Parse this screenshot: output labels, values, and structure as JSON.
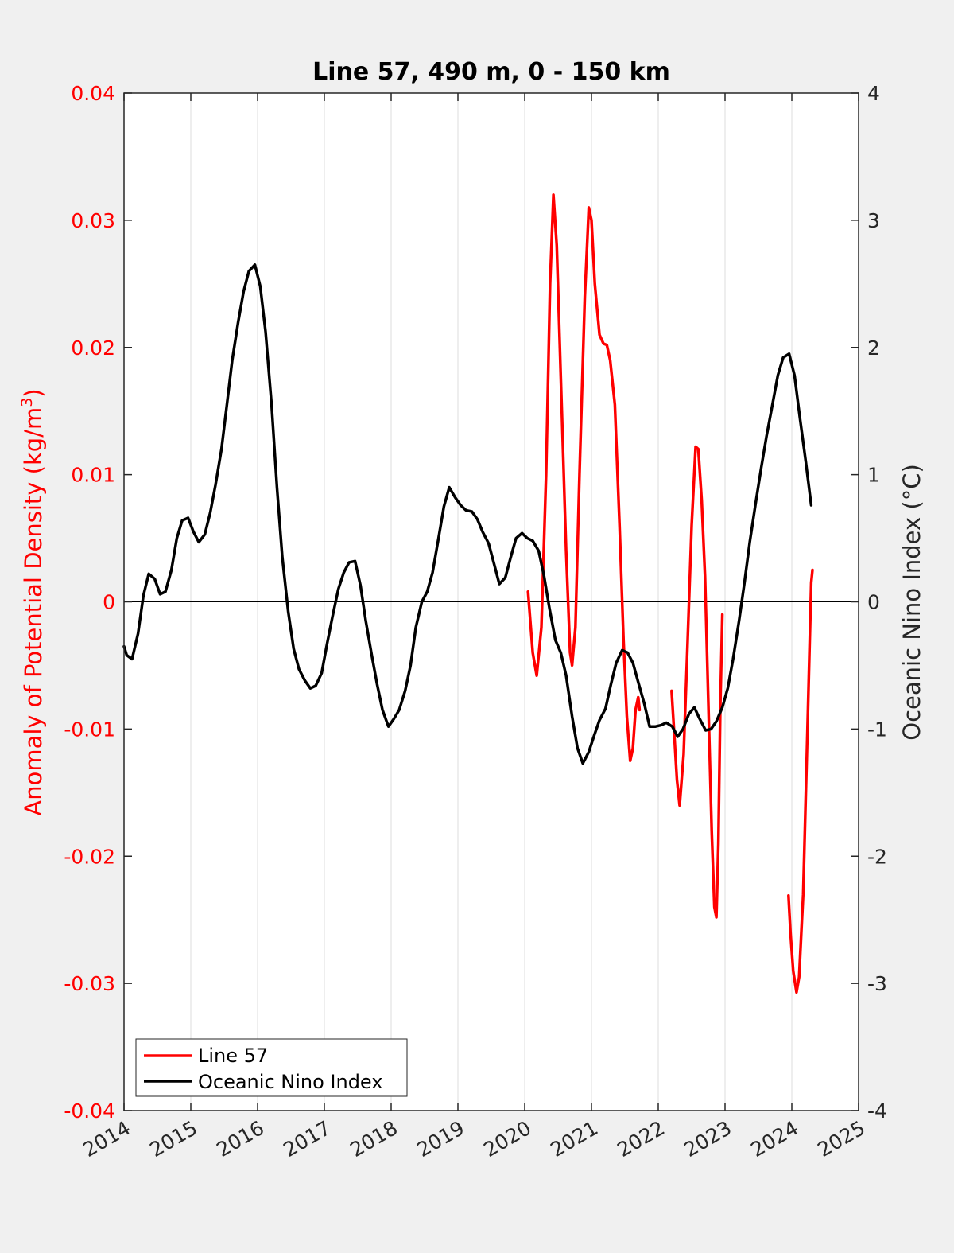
{
  "chart_data": {
    "type": "line",
    "title": "Line 57, 490 m, 0 - 150 km",
    "xlabel": "",
    "ylabel_left": "Anomaly of Potential Density (kg/m",
    "ylabel_left_sup": "3",
    "ylabel_left_close": ")",
    "ylabel_right": "Oceanic Nino Index (°C)",
    "xlim": [
      2014,
      2025
    ],
    "ylim_left": [
      -0.04,
      0.04
    ],
    "ylim_right": [
      -4,
      4
    ],
    "x_ticks": [
      "2014",
      "2015",
      "2016",
      "2017",
      "2018",
      "2019",
      "2020",
      "2021",
      "2022",
      "2023",
      "2024",
      "2025"
    ],
    "y_left_ticks": [
      "-0.04",
      "-0.03",
      "-0.02",
      "-0.01",
      "0",
      "0.01",
      "0.02",
      "0.03",
      "0.04"
    ],
    "y_right_ticks": [
      "-4",
      "-3",
      "-2",
      "-1",
      "0",
      "1",
      "2",
      "3",
      "4"
    ],
    "grid": "vertical",
    "legend_position": "bottom-left",
    "colors": {
      "line57": "#ff0000",
      "oni": "#000000"
    },
    "series": [
      {
        "name": "Line 57",
        "axis": "left",
        "color": "#ff0000",
        "segments": [
          [
            [
              2020.05,
              0.0008
            ],
            [
              2020.12,
              -0.004
            ],
            [
              2020.18,
              -0.0058
            ],
            [
              2020.25,
              -0.002
            ],
            [
              2020.32,
              0.01
            ],
            [
              2020.38,
              0.025
            ],
            [
              2020.43,
              0.032
            ],
            [
              2020.48,
              0.028
            ],
            [
              2020.55,
              0.016
            ],
            [
              2020.62,
              0.004
            ],
            [
              2020.68,
              -0.004
            ],
            [
              2020.71,
              -0.005
            ],
            [
              2020.76,
              -0.002
            ],
            [
              2020.82,
              0.01
            ],
            [
              2020.9,
              0.024
            ],
            [
              2020.96,
              0.031
            ],
            [
              2021.0,
              0.03
            ],
            [
              2021.05,
              0.025
            ],
            [
              2021.12,
              0.021
            ],
            [
              2021.18,
              0.0203
            ],
            [
              2021.23,
              0.0202
            ],
            [
              2021.28,
              0.019
            ],
            [
              2021.35,
              0.0155
            ],
            [
              2021.42,
              0.006
            ],
            [
              2021.48,
              -0.003
            ],
            [
              2021.53,
              -0.009
            ],
            [
              2021.58,
              -0.0125
            ],
            [
              2021.62,
              -0.0115
            ],
            [
              2021.66,
              -0.0085
            ],
            [
              2021.7,
              -0.0075
            ],
            [
              2021.72,
              -0.0085
            ]
          ],
          [
            [
              2022.2,
              -0.007
            ],
            [
              2022.24,
              -0.0105
            ],
            [
              2022.28,
              -0.014
            ],
            [
              2022.32,
              -0.016
            ],
            [
              2022.38,
              -0.012
            ],
            [
              2022.44,
              -0.003
            ],
            [
              2022.5,
              0.006
            ],
            [
              2022.56,
              0.0122
            ],
            [
              2022.6,
              0.012
            ],
            [
              2022.65,
              0.008
            ],
            [
              2022.7,
              0.002
            ],
            [
              2022.75,
              -0.008
            ],
            [
              2022.8,
              -0.018
            ],
            [
              2022.84,
              -0.024
            ],
            [
              2022.87,
              -0.0248
            ],
            [
              2022.9,
              -0.019
            ],
            [
              2022.93,
              -0.008
            ],
            [
              2022.96,
              -0.001
            ]
          ],
          [
            [
              2023.95,
              -0.0231
            ],
            [
              2023.98,
              -0.026
            ],
            [
              2024.02,
              -0.029
            ],
            [
              2024.07,
              -0.0307
            ],
            [
              2024.11,
              -0.0295
            ],
            [
              2024.17,
              -0.023
            ],
            [
              2024.23,
              -0.011
            ],
            [
              2024.29,
              0.0015
            ],
            [
              2024.31,
              0.0025
            ]
          ]
        ]
      },
      {
        "name": "Oceanic Nino Index",
        "axis": "right",
        "color": "#000000",
        "segments": [
          [
            [
              2014.0,
              -0.35
            ],
            [
              2014.04,
              -0.42
            ],
            [
              2014.12,
              -0.45
            ],
            [
              2014.21,
              -0.25
            ],
            [
              2014.29,
              0.05
            ],
            [
              2014.37,
              0.22
            ],
            [
              2014.46,
              0.18
            ],
            [
              2014.54,
              0.06
            ],
            [
              2014.62,
              0.08
            ],
            [
              2014.71,
              0.25
            ],
            [
              2014.79,
              0.5
            ],
            [
              2014.87,
              0.64
            ],
            [
              2014.96,
              0.66
            ],
            [
              2015.04,
              0.55
            ],
            [
              2015.12,
              0.47
            ],
            [
              2015.21,
              0.53
            ],
            [
              2015.29,
              0.7
            ],
            [
              2015.37,
              0.92
            ],
            [
              2015.46,
              1.2
            ],
            [
              2015.54,
              1.55
            ],
            [
              2015.62,
              1.9
            ],
            [
              2015.71,
              2.2
            ],
            [
              2015.79,
              2.44
            ],
            [
              2015.87,
              2.6
            ],
            [
              2015.96,
              2.65
            ],
            [
              2016.04,
              2.48
            ],
            [
              2016.12,
              2.12
            ],
            [
              2016.21,
              1.55
            ],
            [
              2016.29,
              0.9
            ],
            [
              2016.37,
              0.35
            ],
            [
              2016.46,
              -0.08
            ],
            [
              2016.54,
              -0.37
            ],
            [
              2016.62,
              -0.53
            ],
            [
              2016.71,
              -0.62
            ],
            [
              2016.79,
              -0.68
            ],
            [
              2016.87,
              -0.66
            ],
            [
              2016.96,
              -0.56
            ],
            [
              2017.04,
              -0.33
            ],
            [
              2017.12,
              -0.12
            ],
            [
              2017.21,
              0.1
            ],
            [
              2017.29,
              0.23
            ],
            [
              2017.37,
              0.31
            ],
            [
              2017.46,
              0.32
            ],
            [
              2017.54,
              0.13
            ],
            [
              2017.62,
              -0.15
            ],
            [
              2017.71,
              -0.42
            ],
            [
              2017.79,
              -0.65
            ],
            [
              2017.87,
              -0.85
            ],
            [
              2017.96,
              -0.98
            ],
            [
              2018.04,
              -0.92
            ],
            [
              2018.12,
              -0.85
            ],
            [
              2018.21,
              -0.7
            ],
            [
              2018.29,
              -0.5
            ],
            [
              2018.37,
              -0.2
            ],
            [
              2018.46,
              0.0
            ],
            [
              2018.54,
              0.08
            ],
            [
              2018.62,
              0.23
            ],
            [
              2018.71,
              0.5
            ],
            [
              2018.79,
              0.75
            ],
            [
              2018.87,
              0.9
            ],
            [
              2018.96,
              0.82
            ],
            [
              2019.04,
              0.76
            ],
            [
              2019.12,
              0.72
            ],
            [
              2019.21,
              0.71
            ],
            [
              2019.29,
              0.65
            ],
            [
              2019.37,
              0.55
            ],
            [
              2019.46,
              0.46
            ],
            [
              2019.54,
              0.3
            ],
            [
              2019.62,
              0.14
            ],
            [
              2019.71,
              0.19
            ],
            [
              2019.79,
              0.35
            ],
            [
              2019.87,
              0.5
            ],
            [
              2019.96,
              0.54
            ],
            [
              2020.04,
              0.5
            ],
            [
              2020.12,
              0.48
            ],
            [
              2020.21,
              0.4
            ],
            [
              2020.29,
              0.2
            ],
            [
              2020.37,
              -0.05
            ],
            [
              2020.46,
              -0.3
            ],
            [
              2020.54,
              -0.4
            ],
            [
              2020.62,
              -0.58
            ],
            [
              2020.71,
              -0.9
            ],
            [
              2020.79,
              -1.15
            ],
            [
              2020.87,
              -1.27
            ],
            [
              2020.96,
              -1.18
            ],
            [
              2021.04,
              -1.05
            ],
            [
              2021.12,
              -0.93
            ],
            [
              2021.21,
              -0.84
            ],
            [
              2021.29,
              -0.65
            ],
            [
              2021.37,
              -0.48
            ],
            [
              2021.46,
              -0.38
            ],
            [
              2021.54,
              -0.4
            ],
            [
              2021.62,
              -0.48
            ],
            [
              2021.71,
              -0.65
            ],
            [
              2021.79,
              -0.8
            ],
            [
              2021.87,
              -0.98
            ],
            [
              2021.96,
              -0.98
            ],
            [
              2022.04,
              -0.97
            ],
            [
              2022.12,
              -0.95
            ],
            [
              2022.21,
              -0.98
            ],
            [
              2022.29,
              -1.06
            ],
            [
              2022.37,
              -1.0
            ],
            [
              2022.46,
              -0.88
            ],
            [
              2022.54,
              -0.83
            ],
            [
              2022.62,
              -0.92
            ],
            [
              2022.71,
              -1.01
            ],
            [
              2022.79,
              -1.0
            ],
            [
              2022.87,
              -0.94
            ],
            [
              2022.96,
              -0.83
            ],
            [
              2023.04,
              -0.68
            ],
            [
              2023.12,
              -0.45
            ],
            [
              2023.21,
              -0.15
            ],
            [
              2023.29,
              0.15
            ],
            [
              2023.37,
              0.47
            ],
            [
              2023.46,
              0.78
            ],
            [
              2023.54,
              1.05
            ],
            [
              2023.62,
              1.3
            ],
            [
              2023.71,
              1.55
            ],
            [
              2023.79,
              1.78
            ],
            [
              2023.87,
              1.92
            ],
            [
              2023.96,
              1.95
            ],
            [
              2024.04,
              1.78
            ],
            [
              2024.12,
              1.45
            ],
            [
              2024.21,
              1.1
            ],
            [
              2024.29,
              0.76
            ]
          ]
        ]
      }
    ]
  }
}
